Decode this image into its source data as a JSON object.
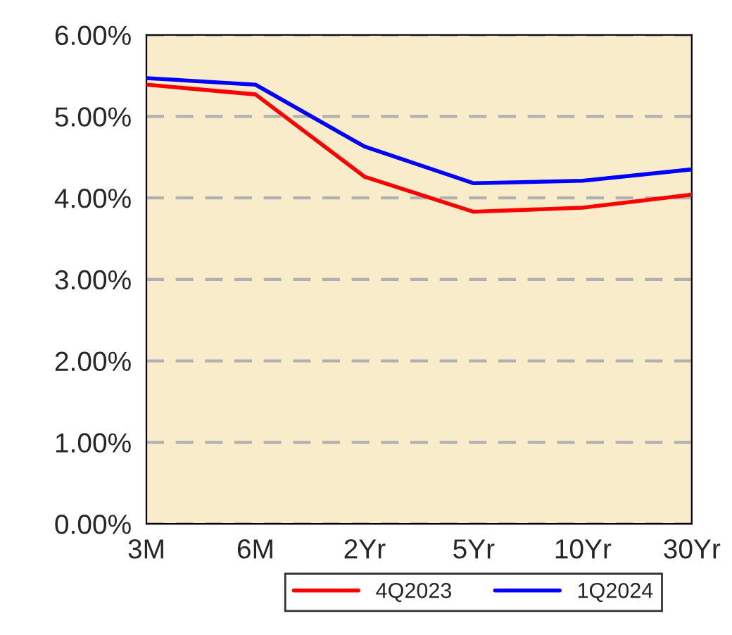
{
  "chart_data": {
    "type": "line",
    "categories": [
      "3M",
      "6M",
      "2Yr",
      "5Yr",
      "10Yr",
      "30Yr"
    ],
    "series": [
      {
        "name": "4Q2023",
        "color": "#ff0000",
        "values": [
          5.39,
          5.27,
          4.26,
          3.83,
          3.88,
          4.04
        ]
      },
      {
        "name": "1Q2024",
        "color": "#0000ff",
        "values": [
          5.47,
          5.39,
          4.63,
          4.18,
          4.21,
          4.35
        ]
      }
    ],
    "ylim": [
      0,
      6
    ],
    "yticks": [
      {
        "value": 0,
        "label": "0.00%"
      },
      {
        "value": 1,
        "label": "1.00%"
      },
      {
        "value": 2,
        "label": "2.00%"
      },
      {
        "value": 3,
        "label": "3.00%"
      },
      {
        "value": 4,
        "label": "4.00%"
      },
      {
        "value": 5,
        "label": "5.00%"
      },
      {
        "value": 6,
        "label": "6.00%"
      }
    ],
    "grid": "y",
    "legend": "bottom",
    "marker": "none",
    "line_style": "solid"
  }
}
